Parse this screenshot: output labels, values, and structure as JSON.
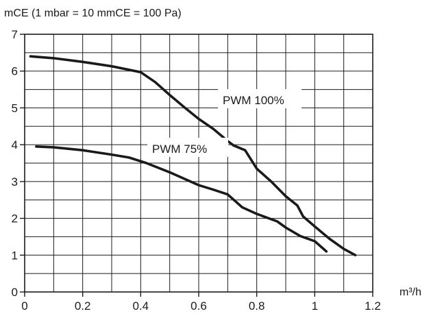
{
  "chart_data": {
    "type": "line",
    "title": "",
    "ylabel": "mCE (1 mbar = 10 mmCE = 100 Pa)",
    "xlabel": "m³/h",
    "xlim": [
      0,
      1.2
    ],
    "ylim": [
      0,
      7
    ],
    "x_ticks": [
      "0",
      "0.2",
      "0.4",
      "0.6",
      "0.8",
      "1",
      "1.2"
    ],
    "y_ticks": [
      "0",
      "1",
      "2",
      "3",
      "4",
      "5",
      "6",
      "7"
    ],
    "x_tick_values": [
      0,
      0.2,
      0.4,
      0.6,
      0.8,
      1.0,
      1.2
    ],
    "y_tick_values": [
      0,
      1,
      2,
      3,
      4,
      5,
      6,
      7
    ],
    "grid": true,
    "series": [
      {
        "name": "PWM 100%",
        "points": [
          [
            0.02,
            6.4
          ],
          [
            0.1,
            6.35
          ],
          [
            0.2,
            6.25
          ],
          [
            0.3,
            6.13
          ],
          [
            0.4,
            5.97
          ],
          [
            0.45,
            5.7
          ],
          [
            0.5,
            5.35
          ],
          [
            0.55,
            5.02
          ],
          [
            0.6,
            4.7
          ],
          [
            0.65,
            4.43
          ],
          [
            0.7,
            4.1
          ],
          [
            0.72,
            3.98
          ],
          [
            0.76,
            3.85
          ],
          [
            0.8,
            3.35
          ],
          [
            0.85,
            3.0
          ],
          [
            0.9,
            2.6
          ],
          [
            0.94,
            2.35
          ],
          [
            0.96,
            2.05
          ],
          [
            1.0,
            1.78
          ],
          [
            1.05,
            1.45
          ],
          [
            1.1,
            1.17
          ],
          [
            1.14,
            1.0
          ]
        ]
      },
      {
        "name": "PWM 75%",
        "points": [
          [
            0.04,
            3.95
          ],
          [
            0.1,
            3.93
          ],
          [
            0.2,
            3.85
          ],
          [
            0.3,
            3.73
          ],
          [
            0.36,
            3.65
          ],
          [
            0.42,
            3.5
          ],
          [
            0.5,
            3.25
          ],
          [
            0.6,
            2.9
          ],
          [
            0.65,
            2.78
          ],
          [
            0.7,
            2.65
          ],
          [
            0.75,
            2.3
          ],
          [
            0.8,
            2.12
          ],
          [
            0.87,
            1.92
          ],
          [
            0.9,
            1.75
          ],
          [
            0.95,
            1.52
          ],
          [
            1.0,
            1.38
          ],
          [
            1.04,
            1.1
          ]
        ]
      }
    ],
    "series_labels": [
      "PWM 100%",
      "PWM 75%"
    ]
  }
}
